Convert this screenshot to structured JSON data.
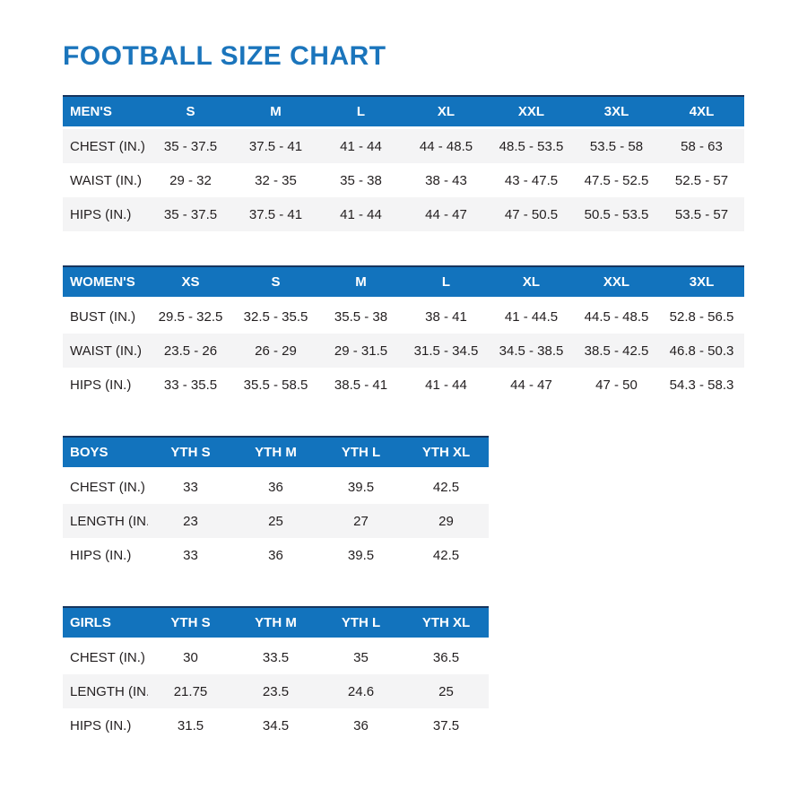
{
  "page": {
    "title": "FOOTBALL SIZE CHART"
  },
  "colors": {
    "title_blue": "#1b75bc",
    "header_blue": "#1273bd",
    "header_top_border": "#16355e",
    "stripe_gray": "#f4f4f5",
    "text": "#231f20"
  },
  "chart_data": [
    {
      "type": "table",
      "name": "mens",
      "zebra": "odd",
      "columns": [
        "MEN'S",
        "S",
        "M",
        "L",
        "XL",
        "XXL",
        "3XL",
        "4XL"
      ],
      "rows": [
        {
          "label": "CHEST (IN.)",
          "values": [
            "35 - 37.5",
            "37.5 - 41",
            "41 - 44",
            "44 - 48.5",
            "48.5 - 53.5",
            "53.5 - 58",
            "58 - 63"
          ]
        },
        {
          "label": "WAIST (IN.)",
          "values": [
            "29 - 32",
            "32 - 35",
            "35 - 38",
            "38 - 43",
            "43 - 47.5",
            "47.5 - 52.5",
            "52.5 - 57"
          ]
        },
        {
          "label": "HIPS (IN.)",
          "values": [
            "35 - 37.5",
            "37.5 - 41",
            "41 - 44",
            "44 - 47",
            "47 - 50.5",
            "50.5 - 53.5",
            "53.5 - 57"
          ]
        }
      ]
    },
    {
      "type": "table",
      "name": "womens",
      "zebra": "even",
      "columns": [
        "WOMEN'S",
        "XS",
        "S",
        "M",
        "L",
        "XL",
        "XXL",
        "3XL"
      ],
      "rows": [
        {
          "label": "BUST (IN.)",
          "values": [
            "29.5 - 32.5",
            "32.5 - 35.5",
            "35.5 - 38",
            "38 - 41",
            "41 - 44.5",
            "44.5 - 48.5",
            "52.8 - 56.5"
          ]
        },
        {
          "label": "WAIST (IN.)",
          "values": [
            "23.5 - 26",
            "26 - 29",
            "29 - 31.5",
            "31.5 - 34.5",
            "34.5 - 38.5",
            "38.5 - 42.5",
            "46.8 - 50.3"
          ]
        },
        {
          "label": "HIPS (IN.)",
          "values": [
            "33 - 35.5",
            "35.5 - 58.5",
            "38.5 - 41",
            "41 - 44",
            "44 - 47",
            "47 - 50",
            "54.3 - 58.3"
          ]
        }
      ]
    },
    {
      "type": "table",
      "name": "boys",
      "zebra": "even",
      "columns": [
        "BOYS",
        "YTH S",
        "YTH M",
        "YTH L",
        "YTH XL"
      ],
      "rows": [
        {
          "label": "CHEST (IN.)",
          "values": [
            "33",
            "36",
            "39.5",
            "42.5"
          ]
        },
        {
          "label": "LENGTH (IN.)",
          "values": [
            "23",
            "25",
            "27",
            "29"
          ]
        },
        {
          "label": "HIPS (IN.)",
          "values": [
            "33",
            "36",
            "39.5",
            "42.5"
          ]
        }
      ]
    },
    {
      "type": "table",
      "name": "girls",
      "zebra": "even",
      "columns": [
        "GIRLS",
        "YTH S",
        "YTH M",
        "YTH L",
        "YTH XL"
      ],
      "rows": [
        {
          "label": "CHEST (IN.)",
          "values": [
            "30",
            "33.5",
            "35",
            "36.5"
          ]
        },
        {
          "label": "LENGTH (IN.)",
          "values": [
            "21.75",
            "23.5",
            "24.6",
            "25"
          ]
        },
        {
          "label": "HIPS (IN.)",
          "values": [
            "31.5",
            "34.5",
            "36",
            "37.5"
          ]
        }
      ]
    }
  ]
}
